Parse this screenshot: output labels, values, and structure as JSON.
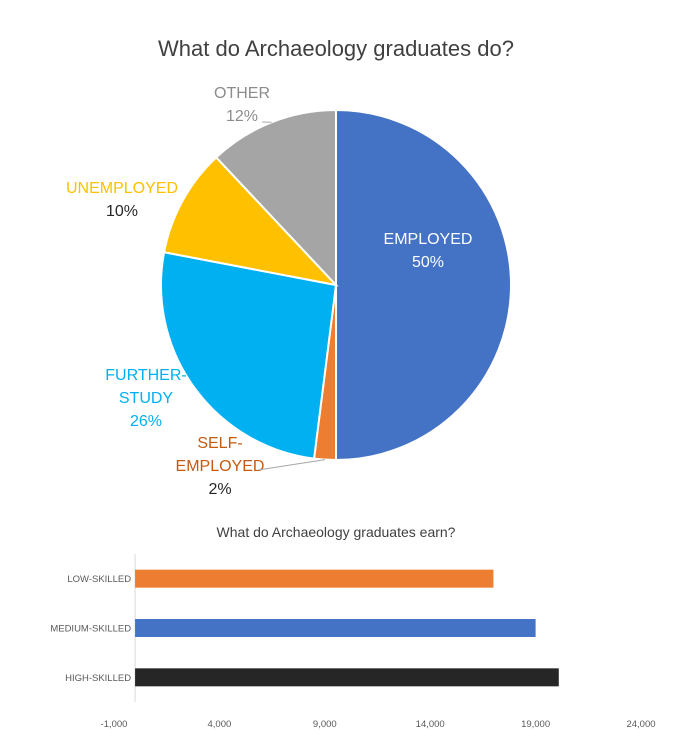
{
  "chart_data": [
    {
      "type": "pie",
      "title": "What do Archaeology graduates do?",
      "slices": [
        {
          "label": "EMPLOYED",
          "label_lines": [
            "EMPLOYED"
          ],
          "value": 50,
          "value_label": "50%",
          "color": "#4472C4",
          "label_color": "#FFFFFF",
          "value_color": "#FFFFFF"
        },
        {
          "label": "SELF-EMPLOYED",
          "label_lines": [
            "SELF-",
            "EMPLOYED"
          ],
          "value": 2,
          "value_label": "2%",
          "color": "#ED7D31",
          "label_color": "#C55A11",
          "value_color": "#262626"
        },
        {
          "label": "FURTHER-STUDY",
          "label_lines": [
            "FURTHER-",
            "STUDY"
          ],
          "value": 26,
          "value_label": "26%",
          "color": "#00B0F0",
          "label_color": "#00B0F0",
          "value_color": "#00B0F0"
        },
        {
          "label": "UNEMPLOYED",
          "label_lines": [
            "UNEMPLOYED"
          ],
          "value": 10,
          "value_label": "10%",
          "color": "#FFC000",
          "label_color": "#FFC000",
          "value_color": "#262626"
        },
        {
          "label": "OTHER",
          "label_lines": [
            "OTHER"
          ],
          "value": 12,
          "value_label": "12%",
          "color": "#A5A5A5",
          "label_color": "#8C8C8C",
          "value_color": "#8C8C8C"
        }
      ]
    },
    {
      "type": "bar",
      "orientation": "horizontal",
      "title": "What do Archaeology graduates earn?",
      "categories": [
        "LOW-SKILLED",
        "MEDIUM-SKILLED",
        "HIGH-SKILLED"
      ],
      "values": [
        17000,
        19000,
        20100
      ],
      "colors": [
        "#ED7D31",
        "#4472C4",
        "#262626"
      ],
      "xlim": [
        -1000,
        24000
      ],
      "ticks": [
        -1000,
        4000,
        9000,
        14000,
        19000,
        24000
      ],
      "tick_labels": [
        "-1,000",
        "4,000",
        "9,000",
        "14,000",
        "19,000",
        "24,000"
      ],
      "grid": false
    }
  ]
}
